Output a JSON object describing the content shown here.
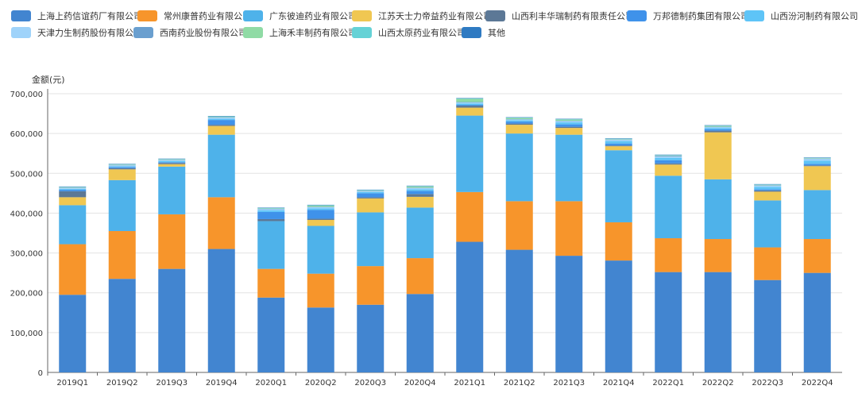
{
  "chart_data": {
    "type": "bar",
    "stacked": true,
    "ylabel": "金额(元)",
    "xlabel": "",
    "ylim": [
      0,
      700000
    ],
    "yticks": [
      "0",
      "100,000",
      "200,000",
      "300,000",
      "400,000",
      "500,000",
      "600,000",
      "700,000"
    ],
    "legend_position": "top",
    "categories": [
      "2019Q1",
      "2019Q2",
      "2019Q3",
      "2019Q4",
      "2020Q1",
      "2020Q2",
      "2020Q3",
      "2020Q4",
      "2021Q1",
      "2021Q2",
      "2021Q3",
      "2021Q4",
      "2022Q1",
      "2022Q2",
      "2022Q3",
      "2022Q4"
    ],
    "series": [
      {
        "name": "上海上药信谊药厂有限公司",
        "color": "#4285d0",
        "values": [
          195000,
          235000,
          260000,
          310000,
          188000,
          163000,
          170000,
          197000,
          328000,
          308000,
          293000,
          281000,
          252000,
          252000,
          232000,
          250000
        ]
      },
      {
        "name": "常州康普药业有限公司",
        "color": "#f7952b",
        "values": [
          127000,
          120000,
          137000,
          130000,
          72000,
          85000,
          97000,
          90000,
          125000,
          122000,
          137000,
          96000,
          85000,
          83000,
          82000,
          85000
        ]
      },
      {
        "name": "广东彼迪药业有限公司",
        "color": "#4eb2ea",
        "values": [
          98000,
          128000,
          120000,
          157000,
          120000,
          120000,
          135000,
          127000,
          192000,
          170000,
          167000,
          181000,
          157000,
          150000,
          118000,
          123000
        ]
      },
      {
        "name": "江苏天士力帝益药业有限公司",
        "color": "#f0c752",
        "values": [
          20000,
          27000,
          6000,
          22000,
          0,
          15000,
          35000,
          27000,
          20000,
          22000,
          17000,
          10000,
          28000,
          118000,
          22000,
          60000
        ]
      },
      {
        "name": "山西利丰华瑞制药有限责任公司",
        "color": "#5c7896",
        "values": [
          15000,
          3000,
          3000,
          3000,
          5000,
          3000,
          3000,
          7000,
          5000,
          3000,
          3000,
          2000,
          3000,
          4000,
          3000,
          2000
        ]
      },
      {
        "name": "万邦德制药集团有限公司",
        "color": "#3f92ea",
        "values": [
          4000,
          3000,
          2000,
          12000,
          18000,
          22000,
          10000,
          8000,
          2000,
          5000,
          6000,
          5000,
          8000,
          4000,
          3000,
          4000
        ]
      },
      {
        "name": "山西汾河制药有限公司",
        "color": "#5ec4f7",
        "values": [
          2000,
          2000,
          3000,
          3000,
          4000,
          4000,
          3000,
          4000,
          3000,
          3000,
          5000,
          6000,
          6000,
          3000,
          6000,
          8000
        ]
      },
      {
        "name": "天津力生制药股份有限公司",
        "color": "#9fd3fa",
        "values": [
          2000,
          2000,
          2000,
          3000,
          3000,
          3000,
          2000,
          3000,
          3000,
          2000,
          3000,
          3000,
          3000,
          2000,
          3000,
          4000
        ]
      },
      {
        "name": "西南药业股份有限公司",
        "color": "#6a9fcf",
        "values": [
          1000,
          1000,
          1000,
          1000,
          1000,
          1000,
          1000,
          1000,
          1000,
          1000,
          1000,
          1000,
          2000,
          1000,
          1000,
          1000
        ]
      },
      {
        "name": "上海禾丰制药有限公司",
        "color": "#90dba5",
        "values": [
          1000,
          1000,
          1000,
          1000,
          1000,
          3000,
          1000,
          3000,
          8000,
          3000,
          3000,
          1000,
          1000,
          2000,
          1000,
          1000
        ]
      },
      {
        "name": "山西太原药业有限公司",
        "color": "#65d2d6",
        "values": [
          1000,
          1000,
          1000,
          1000,
          1000,
          1000,
          1000,
          1000,
          1000,
          1000,
          1000,
          1000,
          1000,
          1000,
          1000,
          1000
        ]
      },
      {
        "name": "其他",
        "color": "#2e7ac2",
        "values": [
          1000,
          1000,
          1000,
          1000,
          1000,
          1000,
          1000,
          1000,
          1000,
          1000,
          1000,
          1000,
          1000,
          1000,
          1000,
          1000
        ]
      }
    ]
  }
}
